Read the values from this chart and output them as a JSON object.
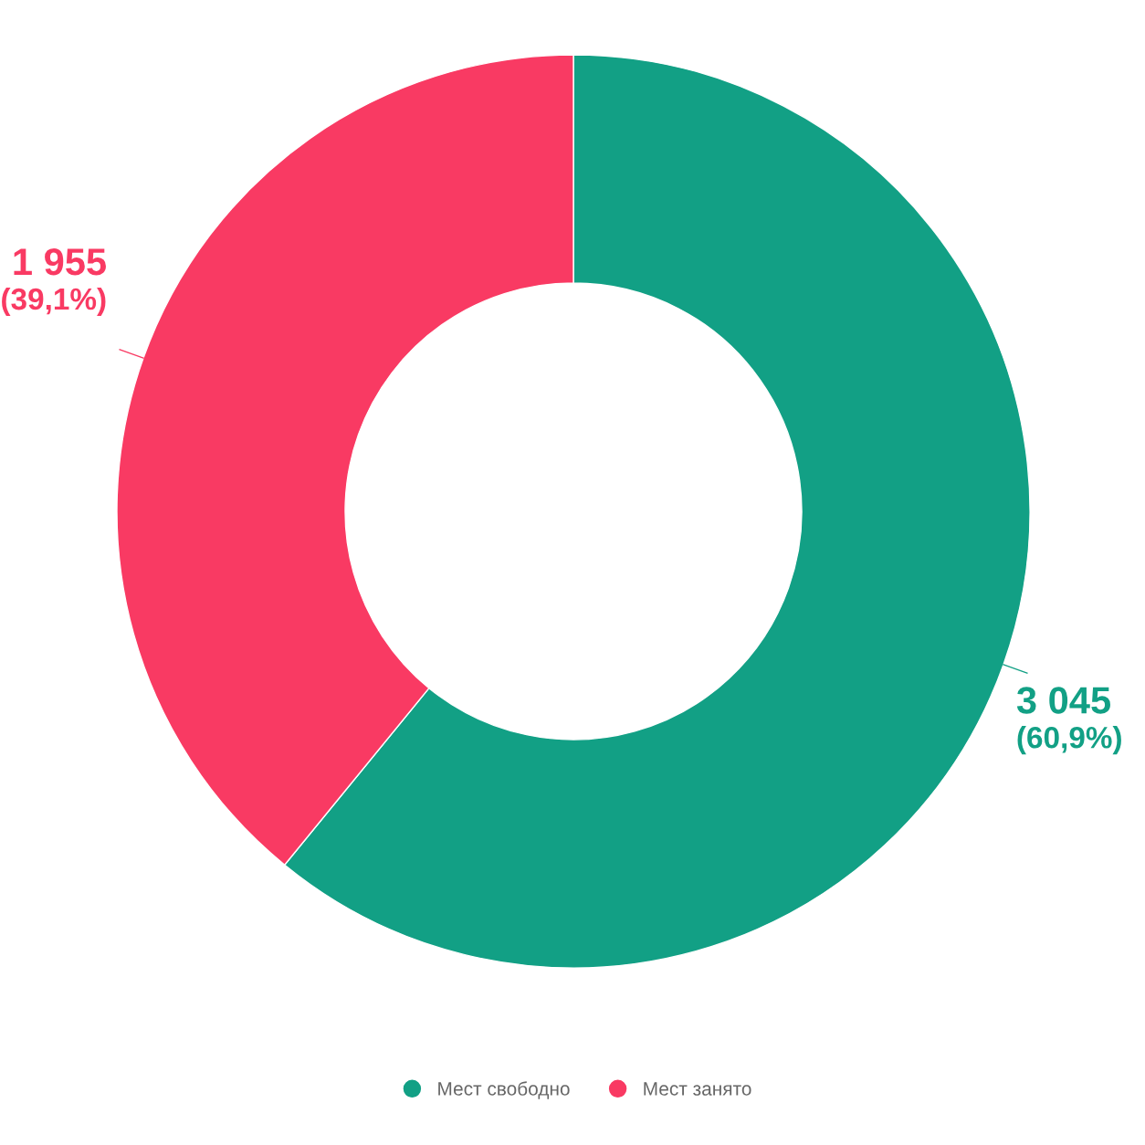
{
  "chart_data": {
    "type": "donut",
    "categories": [
      "Мест свободно",
      "Мест занято"
    ],
    "values": [
      3045,
      1955
    ],
    "colors": [
      "#12a085",
      "#f93a63"
    ],
    "value_labels": [
      "3 045\n(60,9%)",
      "1 955\n(39,1%)"
    ],
    "legend": "bottom"
  }
}
